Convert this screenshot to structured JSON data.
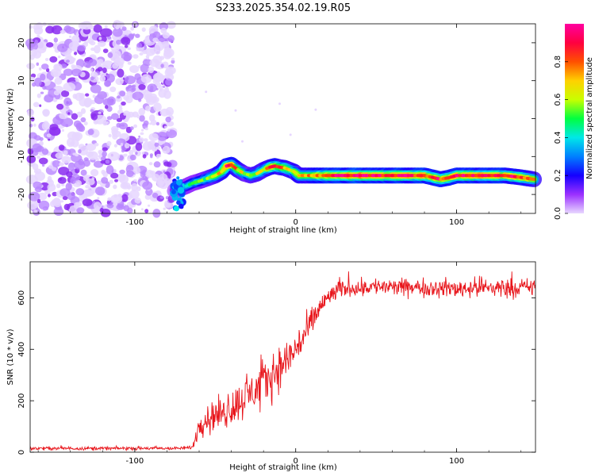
{
  "page": {
    "title": "S233.2025.354.02.19.R05"
  },
  "chart_data": [
    {
      "type": "heatmap",
      "title": "S233.2025.354.02.19.R05",
      "xlabel": "Height of straight line (km)",
      "ylabel": "Frequency (Hz)",
      "xlim": [
        -165,
        149
      ],
      "ylim": [
        -25,
        25
      ],
      "xticks": [
        -100,
        0,
        100
      ],
      "xtick_labels": [
        "-100",
        "0",
        "100"
      ],
      "yticks": [
        -20,
        -10,
        0,
        10,
        20
      ],
      "ytick_labels": [
        "-20",
        "-10",
        "0",
        "10",
        "20"
      ],
      "colorbar": {
        "label": "Normalized spectral amplitude",
        "range": [
          0,
          1
        ],
        "ticks": [
          0.0,
          0.2,
          0.4,
          0.6,
          0.8
        ],
        "tick_labels": [
          "0.0",
          "0.2",
          "0.4",
          "0.6",
          "0.8"
        ],
        "colors": [
          "#e8d8ff",
          "#9b30ff",
          "#1400ff",
          "#0080ff",
          "#00e8e8",
          "#00ff40",
          "#c8ff00",
          "#ffd000",
          "#ff5000",
          "#ff0040",
          "#ff00a0"
        ]
      },
      "noise_region": {
        "x_range": [
          -165,
          -76
        ],
        "y_range": [
          -25,
          25
        ],
        "amplitude": "0.0-0.15"
      },
      "ridge": {
        "x": [
          -75,
          -72,
          -68,
          -64,
          -60,
          -55,
          -50,
          -46,
          -43,
          -40,
          -36,
          -32,
          -28,
          -24,
          -20,
          -16,
          -13,
          -10,
          -7,
          -4,
          -1,
          2,
          8,
          15,
          25,
          40,
          60,
          80,
          85,
          90,
          95,
          100,
          110,
          120,
          130,
          140,
          148
        ],
        "frequency_hz": [
          -19,
          -18.5,
          -17.8,
          -17,
          -16.5,
          -15.8,
          -15,
          -14,
          -12.5,
          -12.2,
          -13.5,
          -14.5,
          -15,
          -14.5,
          -13.5,
          -12.8,
          -12.5,
          -12.8,
          -13,
          -13.5,
          -14,
          -15,
          -15,
          -15,
          -15,
          -15,
          -15,
          -15,
          -15.5,
          -16,
          -15.6,
          -15,
          -15,
          -15,
          -15,
          -15.5,
          -16
        ],
        "amplitude": [
          0.25,
          0.35,
          0.4,
          0.45,
          0.5,
          0.55,
          0.6,
          0.7,
          0.85,
          0.9,
          0.7,
          0.6,
          0.55,
          0.6,
          0.65,
          0.75,
          0.85,
          0.8,
          0.75,
          0.7,
          0.65,
          0.7,
          0.75,
          0.8,
          0.9,
          0.95,
          0.92,
          0.9,
          0.85,
          0.88,
          0.8,
          0.9,
          0.92,
          0.9,
          0.88,
          0.85,
          0.8
        ]
      }
    },
    {
      "type": "line",
      "xlabel": "Height of straight line (km)",
      "ylabel": "SNR (10 * v/v)",
      "xlim": [
        -165,
        149
      ],
      "ylim": [
        0,
        740
      ],
      "xticks": [
        -100,
        0,
        100
      ],
      "xtick_labels": [
        "-100",
        "0",
        "100"
      ],
      "yticks": [
        0,
        200,
        400,
        600
      ],
      "ytick_labels": [
        "0",
        "200",
        "400",
        "600"
      ],
      "series": [
        {
          "name": "SNR",
          "color": "#e8151b",
          "x": [
            -165,
            -140,
            -120,
            -100,
            -80,
            -70,
            -64,
            -62,
            -60,
            -56,
            -52,
            -48,
            -44,
            -40,
            -36,
            -32,
            -28,
            -24,
            -20,
            -16,
            -12,
            -8,
            -4,
            0,
            4,
            8,
            12,
            16,
            20,
            24,
            28,
            32,
            40,
            50,
            60,
            70,
            80,
            90,
            100,
            110,
            120,
            130,
            140,
            149
          ],
          "mean": [
            15,
            15,
            15,
            15,
            15,
            15,
            20,
            60,
            110,
            130,
            140,
            150,
            160,
            175,
            190,
            210,
            230,
            250,
            270,
            290,
            320,
            340,
            370,
            400,
            440,
            480,
            530,
            570,
            600,
            620,
            630,
            640,
            640,
            645,
            640,
            640,
            640,
            640,
            635,
            640,
            640,
            640,
            640,
            640
          ],
          "spread": [
            10,
            10,
            10,
            10,
            10,
            10,
            12,
            40,
            70,
            80,
            85,
            90,
            100,
            110,
            110,
            115,
            120,
            125,
            130,
            130,
            130,
            125,
            120,
            110,
            100,
            90,
            80,
            70,
            60,
            55,
            50,
            50,
            50,
            50,
            50,
            50,
            50,
            50,
            55,
            55,
            60,
            55,
            55,
            50
          ]
        }
      ]
    }
  ]
}
